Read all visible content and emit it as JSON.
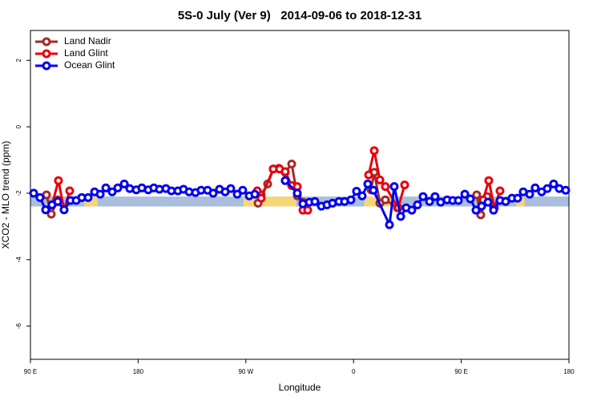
{
  "chart_data": {
    "type": "line",
    "title": "5S-0 July (Ver 9)   2014-09-06 to 2018-12-31",
    "x_label": "Longitude",
    "y_label": "XCO2 - MLO trend (ppm)",
    "xlim": [
      90,
      540
    ],
    "ylim": [
      -7,
      2.9
    ],
    "xticks": [
      {
        "value": 90,
        "label": "90 E"
      },
      180,
      {
        "value": 270,
        "label": "90 W"
      },
      {
        "value": 360,
        "label": "0"
      },
      {
        "value": 450,
        "label": "90 E"
      },
      {
        "value": 540,
        "label": "180"
      }
    ],
    "yticks": [
      2,
      0,
      -2,
      -4,
      -6
    ],
    "legend": "top-left",
    "background_band": {
      "range": [
        -2.4,
        -2.1
      ],
      "color": "#a9bfdc"
    },
    "land_bands": {
      "color": "#f5d77a",
      "ranges": [
        [
          135,
          146
        ],
        [
          268,
          312
        ],
        [
          369,
          393
        ],
        [
          463,
          473
        ],
        [
          496,
          503
        ]
      ]
    },
    "series": [
      {
        "name": "Land Nadir",
        "color": "#a52a2a",
        "x": [
          103.4,
          107.4,
          112.8,
          150,
          280.2,
          282.8,
          288.2,
          292.9,
          297.6,
          302.9,
          308.3,
          313,
          317.7,
          340,
          374.6,
          377.3,
          382,
          386.6,
          396.7,
          430,
          462.9,
          466.3,
          471.6,
          477
        ],
        "values": [
          -2.05,
          -2.63,
          -2.2,
          null,
          -2.3,
          -2.05,
          -1.72,
          -1.27,
          -1.25,
          -1.37,
          -1.12,
          -2.08,
          -2.27,
          null,
          -1.9,
          -1.37,
          -2.3,
          -2.2,
          -2.44,
          null,
          -2.05,
          -2.65,
          -2.1,
          -2.44
        ]
      },
      {
        "name": "Land Glint",
        "color": "#e8000b",
        "x": [
          102.7,
          108,
          113.4,
          118.1,
          122.8,
          200,
          279.5,
          282.8,
          292.9,
          298.2,
          302.9,
          308.3,
          313,
          317.7,
          321.7,
          345,
          372.6,
          377.3,
          382,
          386.6,
          397.3,
          402.7,
          430,
          463.6,
          468.3,
          473,
          477.7,
          482.4
        ],
        "values": [
          -2.5,
          -2.35,
          -1.62,
          -2.5,
          -1.93,
          null,
          -1.93,
          -2.15,
          -1.27,
          -1.27,
          -1.35,
          -1.77,
          -1.8,
          -2.51,
          -2.51,
          null,
          -1.45,
          -0.72,
          -1.6,
          -1.8,
          -2.44,
          -1.75,
          null,
          -2.5,
          -2.2,
          -1.62,
          -2.44,
          -1.93
        ]
      },
      {
        "name": "Ocean Glint",
        "color": "#0000ee",
        "x": [
          92.7,
          98,
          102.7,
          108,
          112.8,
          118.1,
          123.5,
          128.2,
          132.9,
          138.2,
          143.6,
          148.3,
          153,
          158.3,
          163,
          168.4,
          173,
          178.4,
          183.1,
          188.4,
          193.1,
          197.8,
          203.2,
          207.8,
          213.2,
          217.9,
          222.6,
          227.9,
          232.6,
          238,
          242.7,
          248,
          252.7,
          257.4,
          262.8,
          267.4,
          272.8,
          277.5,
          285,
          302.9,
          313,
          317.7,
          323,
          327.7,
          333.1,
          337.8,
          342.4,
          347.8,
          352.5,
          357.8,
          362.5,
          367.2,
          371.9,
          376.6,
          390,
          394,
          399.4,
          404,
          408.7,
          413.4,
          418.1,
          423.5,
          428.1,
          432.8,
          438.2,
          442.9,
          447.6,
          453,
          457.6,
          462.3,
          467,
          472.3,
          477,
          482.4,
          487.1,
          492.4,
          497.1,
          501.8,
          507.2,
          511.8,
          517.2,
          521.9,
          527.2,
          531.9,
          537.3
        ],
        "values": [
          -2.0,
          -2.13,
          -2.5,
          -2.35,
          -2.25,
          -2.5,
          -2.22,
          -2.22,
          -2.13,
          -2.13,
          -1.96,
          -2.03,
          -1.84,
          -1.96,
          -1.84,
          -1.72,
          -1.86,
          -1.9,
          -1.84,
          -1.9,
          -1.84,
          -1.88,
          -1.86,
          -1.93,
          -1.93,
          -1.88,
          -1.96,
          -1.98,
          -1.91,
          -1.91,
          -2.0,
          -1.88,
          -1.96,
          -1.86,
          -2.03,
          -1.91,
          -2.08,
          -2.03,
          null,
          -1.62,
          -2.0,
          -2.32,
          -2.27,
          -2.25,
          -2.39,
          -2.35,
          -2.3,
          -2.25,
          -2.25,
          -2.2,
          -1.94,
          -2.08,
          -1.72,
          -1.91,
          -2.95,
          -1.8,
          -2.7,
          -2.44,
          -2.51,
          -2.35,
          -2.1,
          -2.25,
          -2.1,
          -2.27,
          -2.2,
          -2.22,
          -2.22,
          -2.03,
          -2.17,
          -2.51,
          -2.39,
          -2.27,
          -2.51,
          -2.22,
          -2.25,
          -2.15,
          -2.15,
          -1.96,
          -2.03,
          -1.84,
          -1.96,
          -1.86,
          -1.72,
          -1.86,
          -1.91
        ]
      }
    ]
  }
}
